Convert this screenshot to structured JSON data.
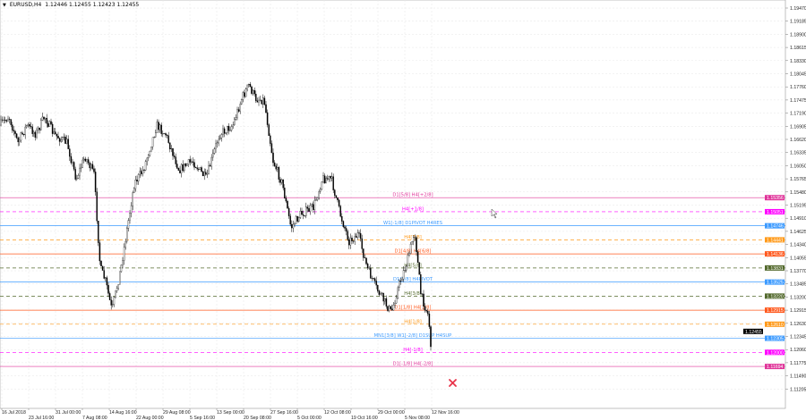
{
  "header": {
    "symbol": "EURUSD,H4",
    "ohlc": "1.12446 1.12455 1.12423 1.12455"
  },
  "price_axis": {
    "ticks": [
      "1.19470",
      "1.19185",
      "1.18900",
      "1.18615",
      "1.18330",
      "1.18045",
      "1.17760",
      "1.17475",
      "1.17190",
      "1.16905",
      "1.16620",
      "1.16335",
      "1.16050",
      "1.15765",
      "1.15480",
      "1.15195",
      "1.14910",
      "1.14625",
      "1.14340",
      "1.14055",
      "1.13770",
      "1.13485",
      "1.13200",
      "1.12915",
      "1.12630",
      "1.12345",
      "1.12060",
      "1.11775",
      "1.11490",
      "1.11205"
    ],
    "current_price": "1.12455",
    "current_color": "#000000"
  },
  "time_axis": {
    "ticks": [
      "16 Jul 2018",
      "23 Jul 16:00",
      "31 Jul 00:00",
      "7 Aug 08:00",
      "14 Aug 16:00",
      "22 Aug 00:00",
      "29 Aug 08:00",
      "5 Sep 16:00",
      "13 Sep 00:00",
      "20 Sep 08:00",
      "27 Sep 16:00",
      "5 Oct 00:00",
      "12 Oct 08:00",
      "19 Oct 16:00",
      "29 Oct 00:00",
      "5 Nov 08:00",
      "12 Nov 16:00"
    ]
  },
  "levels": [
    {
      "label": "D1[5/8] H4[+2/8]",
      "price": "1.15356",
      "color": "#e0359a",
      "style": "solid"
    },
    {
      "label": "H4[+1/8]",
      "price": "1.15051",
      "color": "#ff00ff",
      "style": "dashed"
    },
    {
      "label": "W1[-1/8] D1PIVOT H4RES",
      "price": "1.14746",
      "color": "#3d9bff",
      "style": "solid"
    },
    {
      "label": "H4[7/8]",
      "price": "1.14441",
      "color": "#ff9a1a",
      "style": "dashed"
    },
    {
      "label": "D1[4/8] H4[6/8]",
      "price": "1.14136",
      "color": "#ff5a1f",
      "style": "solid"
    },
    {
      "label": "H4[5/8]",
      "price": "1.13831",
      "color": "#556b2f",
      "style": "dashed"
    },
    {
      "label": "D1[3/8] H4PIVOT",
      "price": "1.13525",
      "color": "#3d9bff",
      "style": "solid"
    },
    {
      "label": "H4[3/8]",
      "price": "1.13220",
      "color": "#556b2f",
      "style": "dashed"
    },
    {
      "label": "D1[1/8] H4[2/8]",
      "price": "1.12915",
      "color": "#ff5a1f",
      "style": "solid"
    },
    {
      "label": "H4[1/8]",
      "price": "1.12610",
      "color": "#ff9a1a",
      "style": "dashed"
    },
    {
      "label": "MN1[3/8] W1[-2/8] D1SUP H4SUP",
      "price": "1.12305",
      "color": "#3d9bff",
      "style": "solid"
    },
    {
      "label": "H4[-1/8]",
      "price": "1.12000",
      "color": "#ff00ff",
      "style": "dashed"
    },
    {
      "label": "D1[-1/8] H4[-2/8]",
      "price": "1.11694",
      "color": "#e0359a",
      "style": "solid"
    }
  ],
  "marker": {
    "icon": "cross-icon",
    "color": "#e8344a"
  }
}
